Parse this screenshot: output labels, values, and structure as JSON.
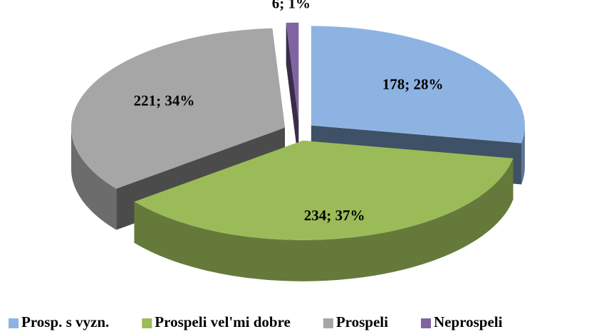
{
  "chart_data": {
    "type": "pie3d",
    "categories": [
      "Prosp. s vyzn.",
      "Prospeli vel'mi dobre",
      "Prospeli",
      "Neprospeli"
    ],
    "values": [
      178,
      234,
      221,
      6
    ],
    "value_labels": [
      "178; 28%",
      "234; 37%",
      "221; 34%",
      "6; 1%"
    ],
    "colors": [
      "#8db3e2",
      "#9bbb59",
      "#a6a6a6",
      "#8064a2"
    ],
    "legend": "bottom"
  }
}
